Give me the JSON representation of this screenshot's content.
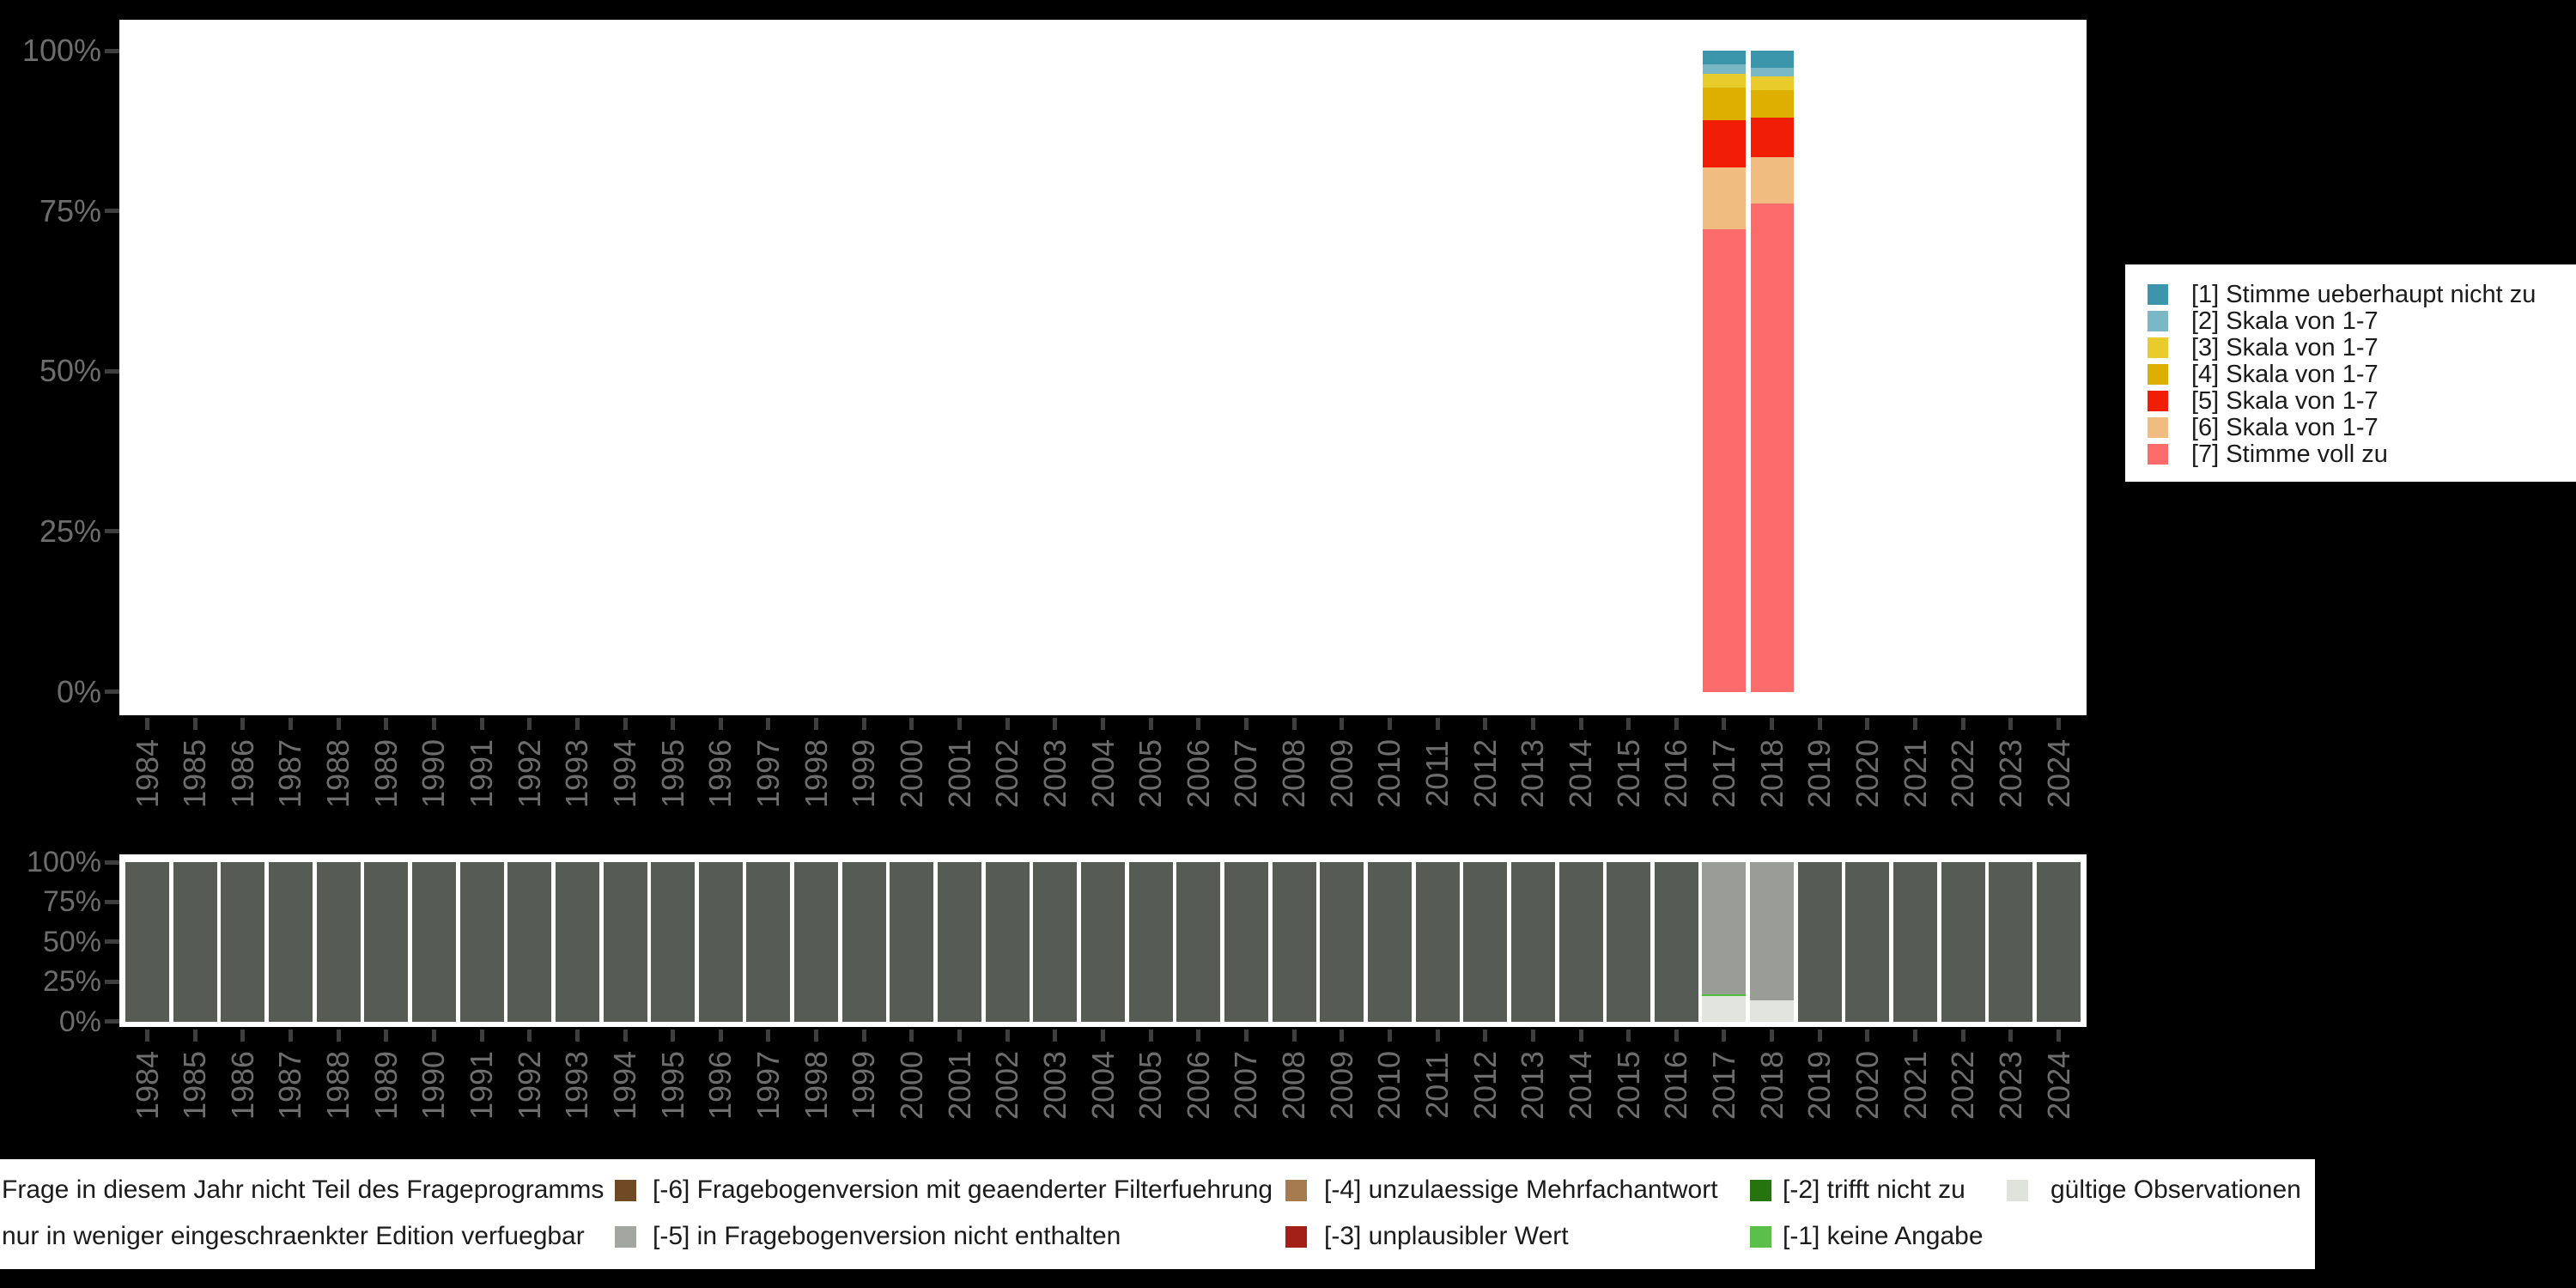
{
  "background_color": "#000000",
  "axis": {
    "text_color": "#6D6D6D",
    "tick_color": "#3E3E3E",
    "y_tick_labels": [
      "100%",
      "75%",
      "50%",
      "25%",
      "0%"
    ],
    "years": [
      "1984",
      "1985",
      "1986",
      "1987",
      "1988",
      "1989",
      "1990",
      "1991",
      "1992",
      "1993",
      "1994",
      "1995",
      "1996",
      "1997",
      "1998",
      "1999",
      "2000",
      "2001",
      "2002",
      "2003",
      "2004",
      "2005",
      "2006",
      "2007",
      "2008",
      "2009",
      "2010",
      "2011",
      "2012",
      "2013",
      "2014",
      "2015",
      "2016",
      "2017",
      "2018",
      "2019",
      "2020",
      "2021",
      "2022",
      "2023",
      "2024"
    ]
  },
  "chart_data": [
    {
      "type": "bar",
      "stacked": true,
      "unit": "percent",
      "title": "",
      "xlabel": "",
      "ylabel": "",
      "ylim": [
        0,
        100
      ],
      "y_ticks": [
        "0%",
        "25%",
        "50%",
        "75%",
        "100%"
      ],
      "grid": false,
      "categories": [
        "1984",
        "1985",
        "1986",
        "1987",
        "1988",
        "1989",
        "1990",
        "1991",
        "1992",
        "1993",
        "1994",
        "1995",
        "1996",
        "1997",
        "1998",
        "1999",
        "2000",
        "2001",
        "2002",
        "2003",
        "2004",
        "2005",
        "2006",
        "2007",
        "2008",
        "2009",
        "2010",
        "2011",
        "2012",
        "2013",
        "2014",
        "2015",
        "2016",
        "2017",
        "2018",
        "2019",
        "2020",
        "2021",
        "2022",
        "2023",
        "2024"
      ],
      "series": [
        {
          "name": "[1] Stimme ueberhaupt nicht zu",
          "color": "#3B96AB",
          "values": {
            "2017": 2.1,
            "2018": 2.7
          }
        },
        {
          "name": "[2] Skala von 1-7",
          "color": "#7AB8C6",
          "values": {
            "2017": 1.5,
            "2018": 1.3
          }
        },
        {
          "name": "[3] Skala von 1-7",
          "color": "#E8CC2B",
          "values": {
            "2017": 2.2,
            "2018": 2.2
          }
        },
        {
          "name": "[4] Skala von 1-7",
          "color": "#DDAF00",
          "values": {
            "2017": 5.0,
            "2018": 4.3
          }
        },
        {
          "name": "[5] Skala von 1-7",
          "color": "#F11D05",
          "values": {
            "2017": 7.4,
            "2018": 6.1
          }
        },
        {
          "name": "[6] Skala von 1-7",
          "color": "#F0BC80",
          "values": {
            "2017": 9.6,
            "2018": 7.2
          }
        },
        {
          "name": "[7] Stimme voll zu",
          "color": "#FB6B6B",
          "values": {
            "2017": 72.2,
            "2018": 76.2
          }
        }
      ],
      "legend_position": "right"
    },
    {
      "type": "bar",
      "stacked": true,
      "unit": "percent",
      "title": "",
      "xlabel": "",
      "ylabel": "",
      "ylim": [
        0,
        100
      ],
      "y_ticks": [
        "0%",
        "25%",
        "50%",
        "75%",
        "100%"
      ],
      "grid": false,
      "categories": [
        "1984",
        "1985",
        "1986",
        "1987",
        "1988",
        "1989",
        "1990",
        "1991",
        "1992",
        "1993",
        "1994",
        "1995",
        "1996",
        "1997",
        "1998",
        "1999",
        "2000",
        "2001",
        "2002",
        "2003",
        "2004",
        "2005",
        "2006",
        "2007",
        "2008",
        "2009",
        "2010",
        "2011",
        "2012",
        "2013",
        "2014",
        "2015",
        "2016",
        "2017",
        "2018",
        "2019",
        "2020",
        "2021",
        "2022",
        "2023",
        "2024"
      ],
      "default_stack": [
        {
          "label": "Frage in diesem Jahr nicht Teil des Frageprogramms",
          "color": "#565B53",
          "pct": 100
        }
      ],
      "overrides": {
        "2017": [
          {
            "label": "[-5] in Fragebogenversion nicht enthalten",
            "color": "#999D96",
            "pct": 83.0
          },
          {
            "label": "[-1] keine Angabe",
            "color": "#50BE3A",
            "pct": 0.8
          },
          {
            "label": "gültige Observationen",
            "color": "#E1E5DE",
            "pct": 16.2
          }
        ],
        "2018": [
          {
            "label": "[-5] in Fragebogenversion nicht enthalten",
            "color": "#999D96",
            "pct": 86.6
          },
          {
            "label": "gültige Observationen",
            "color": "#E1E5DE",
            "pct": 13.4
          }
        ]
      },
      "legend_position": "bottom"
    }
  ],
  "legend_right": {
    "items": [
      {
        "label": "[1] Stimme ueberhaupt nicht zu",
        "color": "#3B96AB"
      },
      {
        "label": "[2] Skala von 1-7",
        "color": "#7AB8C6"
      },
      {
        "label": "[3] Skala von 1-7",
        "color": "#E8CC2B"
      },
      {
        "label": "[4] Skala von 1-7",
        "color": "#DDAF00"
      },
      {
        "label": "[5] Skala von 1-7",
        "color": "#F11D05"
      },
      {
        "label": "[6] Skala von 1-7",
        "color": "#F0BC80"
      },
      {
        "label": "[7] Stimme voll zu",
        "color": "#FB6B6B"
      }
    ]
  },
  "legend_bottom": {
    "rows": [
      [
        {
          "label": "Frage in diesem Jahr nicht Teil des Frageprogramms",
          "color": null
        },
        {
          "label": "[-6] Fragebogenversion mit geaenderter Filterfuehrung",
          "color": "#6F4A24"
        },
        {
          "label": "[-4] unzulaessige Mehrfachantwort",
          "color": "#A67B4F"
        },
        {
          "label": "[-2] trifft nicht zu",
          "color": "#26730F"
        },
        {
          "label": "gültige Observationen",
          "color": "#DFE3DC"
        }
      ],
      [
        {
          "label": "nur in weniger eingeschraenkter Edition verfuegbar",
          "color": null
        },
        {
          "label": "[-5] in Fragebogenversion nicht enthalten",
          "color": "#A3A7A0"
        },
        {
          "label": "[-3] unplausibler Wert",
          "color": "#A32019"
        },
        {
          "label": "[-1] keine Angabe",
          "color": "#5BC04A"
        }
      ]
    ]
  }
}
